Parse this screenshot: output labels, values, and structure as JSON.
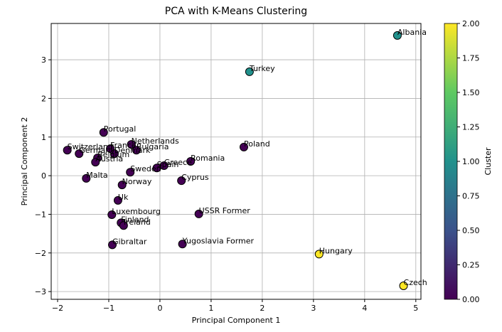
{
  "chart_data": {
    "type": "scatter",
    "title": "PCA with K-Means Clustering",
    "x_label": "Principal Component 1",
    "y_label": "Principal Component 2",
    "xlim": [
      -2.125,
      5.1
    ],
    "ylim": [
      -3.2,
      3.94
    ],
    "xticks": [
      {
        "value": -2,
        "label": "−2"
      },
      {
        "value": -1,
        "label": "−1"
      },
      0,
      1,
      2,
      3,
      4,
      5
    ],
    "yticks": [
      {
        "value": -3,
        "label": "−3"
      },
      {
        "value": -2,
        "label": "−2"
      },
      {
        "value": -1,
        "label": "−1"
      },
      0,
      1,
      2,
      3
    ],
    "grid": true,
    "labels": [
      "Albania",
      "Turkey",
      "Portugal",
      "Netherlands",
      "Bulgaria",
      "France",
      "Denmark",
      "Switzerland",
      "Germany",
      "Belgium",
      "Austria",
      "Malta",
      "Sweden",
      "Spain",
      "Greece",
      "Norway",
      "Uk",
      "Luxembourg",
      "Finland",
      "Ireland",
      "Gibraltar",
      "Cyprus",
      "Romania",
      "Poland",
      "USSR Former",
      "Yugoslavia Former",
      "Hungary",
      "Czech"
    ],
    "x": [
      4.64,
      1.75,
      -1.1,
      -0.56,
      -0.46,
      -0.97,
      -0.89,
      -1.81,
      -1.58,
      -1.22,
      -1.26,
      -1.44,
      -0.58,
      -0.06,
      0.08,
      -0.74,
      -0.82,
      -0.94,
      -0.76,
      -0.71,
      -0.93,
      0.42,
      0.6,
      1.64,
      0.76,
      0.44,
      3.11,
      4.76
    ],
    "values": [
      3.63,
      2.69,
      1.12,
      0.81,
      0.66,
      0.7,
      0.57,
      0.66,
      0.57,
      0.46,
      0.35,
      -0.07,
      0.09,
      0.2,
      0.26,
      -0.24,
      -0.64,
      -1.01,
      -1.22,
      -1.29,
      -1.79,
      -0.13,
      0.37,
      0.74,
      -0.99,
      -1.77,
      -2.03,
      -2.85
    ],
    "cluster": [
      1,
      1,
      0,
      0,
      0,
      0,
      0,
      0,
      0,
      0,
      0,
      0,
      0,
      0,
      0,
      0,
      0,
      0,
      0,
      0,
      0,
      0,
      0,
      0,
      0,
      0,
      2,
      2
    ],
    "colorbar": {
      "label": "Cluster",
      "lim": [
        0,
        2
      ],
      "ticks": [
        {
          "value": 0,
          "label": "0.00"
        },
        {
          "value": 0.25,
          "label": "0.25"
        },
        {
          "value": 0.5,
          "label": "0.50"
        },
        {
          "value": 0.75,
          "label": "0.75"
        },
        {
          "value": 1,
          "label": "1.00"
        },
        {
          "value": 1.25,
          "label": "1.25"
        },
        {
          "value": 1.5,
          "label": "1.50"
        },
        {
          "value": 1.75,
          "label": "1.75"
        },
        {
          "value": 2,
          "label": "2.00"
        }
      ],
      "colormap": [
        "#440154",
        "#3b528b",
        "#21918c",
        "#5ec962",
        "#fde725"
      ]
    }
  }
}
